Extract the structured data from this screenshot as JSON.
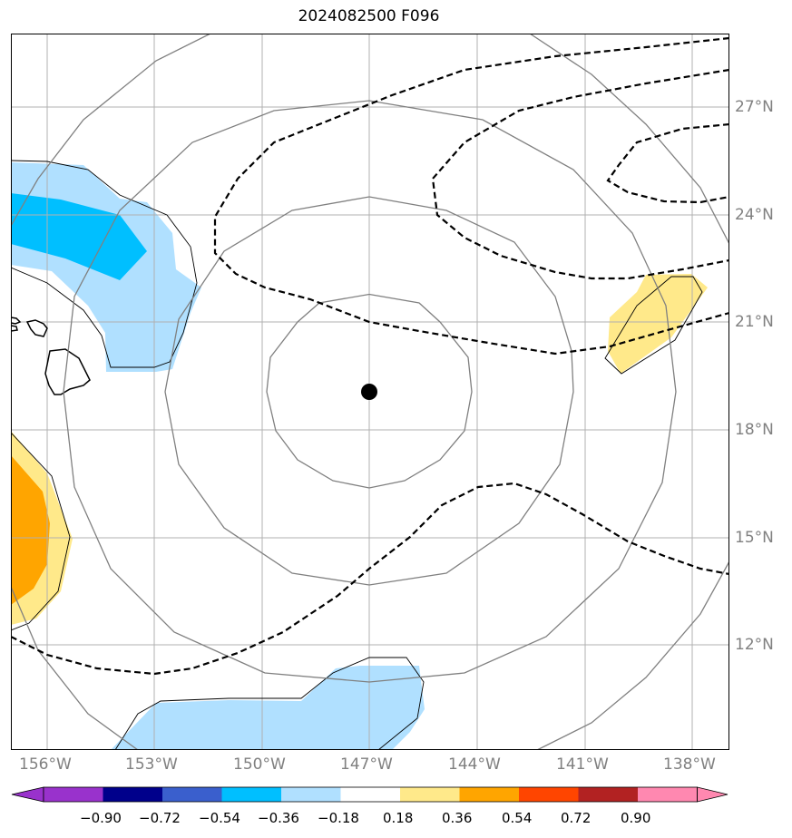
{
  "title": "2024082500 F096",
  "latitude_labels": [
    "27°N",
    "24°N",
    "21°N",
    "18°N",
    "15°N",
    "12°N"
  ],
  "longitude_labels": [
    "156°W",
    "153°W",
    "150°W",
    "147°W",
    "144°W",
    "141°W",
    "138°W"
  ],
  "colorbar": {
    "labels": [
      "−0.90",
      "−0.72",
      "−0.54",
      "−0.36",
      "−0.18",
      "0.18",
      "0.36",
      "0.54",
      "0.72",
      "0.90"
    ],
    "colors": [
      "#9932CC",
      "#00008B",
      "#3A5FCD",
      "#00BFFF",
      "#B0E0FF",
      "#FFFFFF",
      "#FFE98A",
      "#FFA500",
      "#FF4500",
      "#B22222",
      "#FF88B0"
    ]
  },
  "map": {
    "center_marker": "filled-circle",
    "fill_colors": {
      "light_blue": "#B0E0FF",
      "deep_sky_blue": "#00BFFF",
      "light_yellow": "#FFE98A",
      "orange": "#FFA500"
    },
    "contour_color": "#000000",
    "range_ring_color": "#808080",
    "grid_color": "#b0b0b0"
  }
}
